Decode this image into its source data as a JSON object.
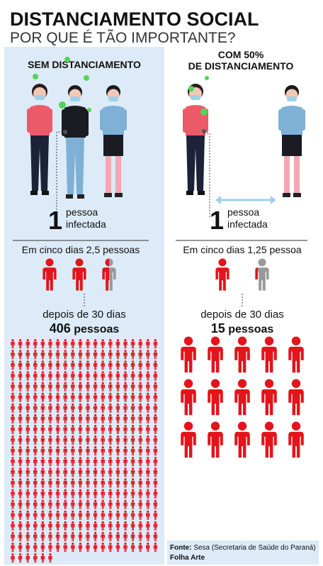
{
  "header": {
    "title": "DISTANCIAMENTO SOCIAL",
    "subtitle": "POR QUE É TÃO IMPORTANTE?"
  },
  "panels": [
    {
      "title_lines": [
        "SEM DISTANCIAMENTO"
      ],
      "infected_number": "1",
      "infected_lines": [
        "pessoa",
        "infectada"
      ],
      "five_days": "Em cinco dias 2,5 pessoas",
      "thirty_days": "depois de 30 dias",
      "total_count": 406,
      "total_label": "pessoas"
    },
    {
      "title_lines": [
        "COM 50%",
        "DE DISTANCIAMENTO"
      ],
      "infected_number": "1",
      "infected_lines": [
        "pessoa",
        "infectada"
      ],
      "five_days": "Em cinco dias 1,25 pessoa",
      "thirty_days": "depois de 30 dias",
      "total_count": 15,
      "total_label": "pessoas"
    }
  ],
  "footer": {
    "source_label": "Fonte:",
    "source": "Sesa (Secretaria de Saúde do Paraná)",
    "credit": "Folha Arte"
  }
}
